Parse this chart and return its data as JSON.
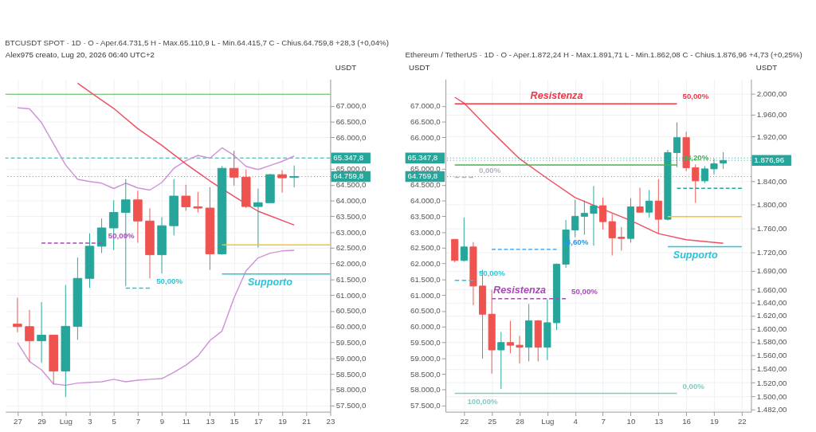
{
  "chart_data": [
    {
      "type": "candlestick",
      "title": "BTCUSDT SPOT · 1D · O - Aper.64.731,5  H - Max.65.110,9  L - Min.64.415,7  C - Chius.64.759,8  +28,3 (+0,04%)",
      "ylabel": "USDT",
      "annotations": [
        "Alex975 creato, Lug 20, 2026 06:40 UTC+2",
        {
          "text": "50,00%",
          "x": "2026-07-04",
          "y": 62650
        },
        {
          "text": "50,00%",
          "x": "2026-07-08",
          "y": 61220
        },
        {
          "text": "Supporto",
          "x": "2026-07-18",
          "y": 61670
        }
      ],
      "series": [
        {
          "type": "line",
          "color": "#ce93d8",
          "x": [
            "2026-06-27",
            "2026-06-28",
            "2026-06-29",
            "2026-06-30",
            "2026-07-01",
            "2026-07-02",
            "2026-07-03",
            "2026-07-04",
            "2026-07-05",
            "2026-07-06",
            "2026-07-07",
            "2026-07-08",
            "2026-07-09",
            "2026-07-10",
            "2026-07-11",
            "2026-07-12",
            "2026-07-13",
            "2026-07-14",
            "2026-07-15",
            "2026-07-16",
            "2026-07-17",
            "2026-07-18",
            "2026-07-19",
            "2026-07-20"
          ],
          "values": [
            66940,
            66910,
            66470,
            65800,
            65130,
            64670,
            64600,
            64550,
            64380,
            64550,
            64400,
            64330,
            64570,
            65020,
            65260,
            65430,
            65340,
            65670,
            65430,
            65080,
            64980,
            65110,
            65240,
            65410
          ]
        },
        {
          "type": "line",
          "color": "#ce93d8",
          "x": [
            "2026-06-27",
            "2026-06-28",
            "2026-06-29",
            "2026-06-30",
            "2026-07-01",
            "2026-07-02",
            "2026-07-03",
            "2026-07-04",
            "2026-07-05",
            "2026-07-06",
            "2026-07-07",
            "2026-07-08",
            "2026-07-09",
            "2026-07-10",
            "2026-07-11",
            "2026-07-12",
            "2026-07-13",
            "2026-07-14",
            "2026-07-15",
            "2026-07-16",
            "2026-07-17",
            "2026-07-18",
            "2026-07-19",
            "2026-07-20"
          ],
          "values": [
            59490,
            58890,
            58630,
            58180,
            58140,
            58210,
            58230,
            58250,
            58330,
            58250,
            58300,
            58330,
            58350,
            58550,
            58780,
            59070,
            59560,
            59860,
            60910,
            61770,
            62180,
            62330,
            62400,
            62420
          ]
        },
        {
          "type": "line",
          "color": "#ef4f63",
          "x": [
            "2026-07-02",
            "2026-07-03",
            "2026-07-05",
            "2026-07-07",
            "2026-07-09",
            "2026-07-11",
            "2026-07-13",
            "2026-07-15",
            "2026-07-17",
            "2026-07-20"
          ],
          "values": [
            67720,
            67450,
            66920,
            66280,
            65750,
            65160,
            64620,
            64130,
            63660,
            63220
          ]
        },
        {
          "type": "line",
          "color": "#ab47bc",
          "line_style": "dashed",
          "x": [
            "2026-06-29",
            "2026-07-04"
          ],
          "values": [
            62650,
            62650
          ]
        },
        {
          "type": "line",
          "color": "#26c6da",
          "line_style": "dashed",
          "x": [
            "2026-07-06",
            "2026-07-08"
          ],
          "values": [
            61220,
            61220
          ]
        },
        {
          "type": "line",
          "color": "#f9c320",
          "x": [
            "2026-07-14",
            "2026-07-23"
          ],
          "values": [
            62590,
            62590
          ]
        },
        {
          "type": "line",
          "color": "#26c6da",
          "x": [
            "2026-07-14",
            "2026-07-23"
          ],
          "values": [
            61670,
            61670
          ]
        },
        {
          "type": "candlestick",
          "x": [
            "2026-06-27",
            "2026-06-28",
            "2026-06-29",
            "2026-06-30",
            "2026-07-01",
            "2026-07-02",
            "2026-07-03",
            "2026-07-04",
            "2026-07-05",
            "2026-07-06",
            "2026-07-07",
            "2026-07-08",
            "2026-07-09",
            "2026-07-10",
            "2026-07-11",
            "2026-07-12",
            "2026-07-13",
            "2026-07-14",
            "2026-07-15",
            "2026-07-16",
            "2026-07-17",
            "2026-07-18",
            "2026-07-19",
            "2026-07-20"
          ],
          "ohlc": [
            [
              60080,
              60920,
              59820,
              60000
            ],
            [
              60000,
              60530,
              58890,
              59550
            ],
            [
              59550,
              60780,
              58850,
              59730
            ],
            [
              59730,
              59730,
              58180,
              58590
            ],
            [
              58590,
              61320,
              57770,
              60010
            ],
            [
              60010,
              62190,
              59580,
              61530
            ],
            [
              61530,
              62960,
              61230,
              62550
            ],
            [
              62550,
              63430,
              62330,
              63130
            ],
            [
              63130,
              64010,
              62430,
              63620
            ],
            [
              63620,
              64680,
              61280,
              64020
            ],
            [
              64020,
              64310,
              62660,
              63350
            ],
            [
              63350,
              63750,
              61530,
              62280
            ],
            [
              62280,
              63470,
              61690,
              63200
            ],
            [
              63200,
              64680,
              62890,
              64140
            ],
            [
              64140,
              64500,
              63670,
              63800
            ],
            [
              63800,
              64270,
              63620,
              63760
            ],
            [
              63760,
              64420,
              61800,
              62310
            ],
            [
              62310,
              65090,
              62280,
              65020
            ],
            [
              65020,
              65580,
              64470,
              64740
            ],
            [
              64740,
              64980,
              63760,
              63810
            ],
            [
              63810,
              64380,
              62510,
              63930
            ],
            [
              63930,
              64850,
              63930,
              64820
            ],
            [
              64820,
              64960,
              64250,
              64720
            ],
            [
              64731.5,
              65110.9,
              64415.7,
              64759.8
            ]
          ],
          "colors": [
            "#ef5350",
            "#ef5350",
            "#26a69a",
            "#ef5350",
            "#26a69a",
            "#26a69a",
            "#26a69a",
            "#26a69a",
            "#26a69a",
            "#26a69a",
            "#ef5350",
            "#ef5350",
            "#26a69a",
            "#26a69a",
            "#ef5350",
            "#ef5350",
            "#ef5350",
            "#26a69a",
            "#ef5350",
            "#ef5350",
            "#26a69a",
            "#26a69a",
            "#ef5350",
            "#26a69a"
          ]
        }
      ],
      "ref_lines": [
        {
          "axis": "y",
          "value": 67370,
          "label": null,
          "color": "#4caf50",
          "line_style": "solid"
        },
        {
          "axis": "y",
          "value": 65347.8,
          "label": "65.347,8",
          "color": "#26a69a",
          "line_style": "dashed"
        },
        {
          "axis": "y",
          "value": 64759.8,
          "label": "64.759,8",
          "color": "#26a69a",
          "line_style": "dotted"
        }
      ],
      "xlim": [
        "2026-06-26",
        "2026-07-23"
      ],
      "xticks": [
        {
          "value": "2026-06-27",
          "label": "27"
        },
        {
          "value": "2026-06-29",
          "label": "29"
        },
        {
          "value": "2026-07-01",
          "label": "Lug"
        },
        {
          "value": "2026-07-03",
          "label": "3"
        },
        {
          "value": "2026-07-05",
          "label": "5"
        },
        {
          "value": "2026-07-07",
          "label": "7"
        },
        {
          "value": "2026-07-09",
          "label": "9"
        },
        {
          "value": "2026-07-11",
          "label": "11"
        },
        {
          "value": "2026-07-13",
          "label": "13"
        },
        {
          "value": "2026-07-15",
          "label": "15"
        },
        {
          "value": "2026-07-17",
          "label": "17"
        },
        {
          "value": "2026-07-19",
          "label": "19"
        },
        {
          "value": "2026-07-21",
          "label": "21"
        },
        {
          "value": "2026-07-23",
          "label": "23"
        }
      ],
      "ylim": [
        57300,
        67850
      ],
      "yticks": [
        {
          "value": 57500,
          "label": "57.500,0"
        },
        {
          "value": 58000,
          "label": "58.000,0"
        },
        {
          "value": 58500,
          "label": "58.500,0"
        },
        {
          "value": 59000,
          "label": "59.000,0"
        },
        {
          "value": 59500,
          "label": "59.500,0"
        },
        {
          "value": 60000,
          "label": "60.000,0"
        },
        {
          "value": 60500,
          "label": "60.500,0"
        },
        {
          "value": 61000,
          "label": "61.000,0"
        },
        {
          "value": 61500,
          "label": "61.500,0"
        },
        {
          "value": 62000,
          "label": "62.000,0"
        },
        {
          "value": 62500,
          "label": "62.500,0"
        },
        {
          "value": 63000,
          "label": "63.000,0"
        },
        {
          "value": 63500,
          "label": "63.500,0"
        },
        {
          "value": 64000,
          "label": "64.000,0"
        },
        {
          "value": 64500,
          "label": "64.500,0"
        },
        {
          "value": 65000,
          "label": "65.000,0"
        },
        {
          "value": 66000,
          "label": "66.000,0"
        },
        {
          "value": 66500,
          "label": "66.500,0"
        },
        {
          "value": 67000,
          "label": "67.000,0"
        }
      ],
      "grid": true
    },
    {
      "type": "candlestick",
      "title": "Ethereum / TetherUS · 1D · O - Aper.1.872,24  H - Max.1.891,71  L - Min.1.862,08  C - Chius.1.876,96  +4,73 (+0,25%)",
      "ylabel": "USDT",
      "y2label": "USDT",
      "log": "y",
      "annotations": [
        {
          "text": "Resistenza",
          "x": "2026-07-02",
          "y": 1980.5
        },
        {
          "text": "50,00%",
          "x": "2026-07-15",
          "y": 1980.5
        },
        {
          "text": "38,20%",
          "x": "2026-07-15",
          "y": 1869
        },
        {
          "text": "0,00%",
          "x": "2026-06-23",
          "y": 1847
        },
        {
          "text": "78,60%",
          "x": "2026-07-02",
          "y": 1725
        },
        {
          "text": "Supporto",
          "x": "2026-07-17",
          "y": 1729.5
        },
        {
          "text": "50,00%",
          "x": "2026-06-23",
          "y": 1675
        },
        {
          "text": "Resistenza",
          "x": "2026-06-28",
          "y": 1646
        },
        {
          "text": "50,00%",
          "x": "2026-07-03",
          "y": 1646
        },
        {
          "text": "100,00%",
          "x": "2026-06-24",
          "y": 1504.6
        },
        {
          "text": "0,00%",
          "x": "2026-07-15",
          "y": 1504.6
        }
      ],
      "series": [
        {
          "type": "line",
          "color": "#ef4f63",
          "x": [
            "2026-06-21",
            "2026-06-22",
            "2026-06-25",
            "2026-06-28",
            "2026-07-01",
            "2026-07-04",
            "2026-07-07",
            "2026-07-10",
            "2026-07-13",
            "2026-07-16",
            "2026-07-20"
          ],
          "values": [
            1993,
            1982,
            1929,
            1880,
            1845,
            1812,
            1792,
            1773,
            1751,
            1741,
            1735
          ]
        },
        {
          "type": "line",
          "color": "#f23645",
          "x": [
            "2026-06-21",
            "2026-07-15"
          ],
          "values": [
            1980.5,
            1980.5
          ]
        },
        {
          "type": "line",
          "color": "#4caf50",
          "x": [
            "2026-06-21",
            "2026-07-15"
          ],
          "values": [
            1869,
            1869
          ]
        },
        {
          "type": "line",
          "color": "#b2b5be",
          "line_style": "dashed",
          "x": [
            "2026-06-21",
            "2026-06-23"
          ],
          "values": [
            1847,
            1847
          ]
        },
        {
          "type": "line",
          "color": "#26c6da",
          "line_style": "dashed",
          "x": [
            "2026-06-21",
            "2026-06-23"
          ],
          "values": [
            1675,
            1675
          ]
        },
        {
          "type": "line",
          "color": "#2196f3",
          "line_style": "dashed",
          "x": [
            "2026-06-25",
            "2026-07-02"
          ],
          "values": [
            1725,
            1725
          ]
        },
        {
          "type": "line",
          "color": "#ab47bc",
          "line_style": "dashed",
          "x": [
            "2026-06-25",
            "2026-07-03"
          ],
          "values": [
            1646,
            1646
          ]
        },
        {
          "type": "line",
          "color": "#80cbc4",
          "x": [
            "2026-06-21",
            "2026-07-15"
          ],
          "values": [
            1504.6,
            1504.6
          ]
        },
        {
          "type": "line",
          "color": "#26a69a",
          "line_style": "dashed",
          "x": [
            "2026-07-15",
            "2026-07-22"
          ],
          "values": [
            1828,
            1828
          ]
        },
        {
          "type": "line",
          "color": "#f9c320",
          "x": [
            "2026-07-14",
            "2026-07-22"
          ],
          "values": [
            1779.6,
            1779.6
          ]
        },
        {
          "type": "line",
          "color": "#26c6da",
          "x": [
            "2026-07-14",
            "2026-07-22"
          ],
          "values": [
            1729.5,
            1729.5
          ]
        },
        {
          "type": "candlestick",
          "x": [
            "2026-06-21",
            "2026-06-22",
            "2026-06-23",
            "2026-06-24",
            "2026-06-25",
            "2026-06-26",
            "2026-06-27",
            "2026-06-28",
            "2026-06-29",
            "2026-06-30",
            "2026-07-01",
            "2026-07-02",
            "2026-07-03",
            "2026-07-04",
            "2026-07-05",
            "2026-07-06",
            "2026-07-07",
            "2026-07-08",
            "2026-07-09",
            "2026-07-10",
            "2026-07-11",
            "2026-07-12",
            "2026-07-13",
            "2026-07-14",
            "2026-07-15",
            "2026-07-16",
            "2026-07-17",
            "2026-07-18",
            "2026-07-19",
            "2026-07-20"
          ],
          "ohlc": [
            [
              1741.5,
              1742,
              1704,
              1707
            ],
            [
              1707,
              1778,
              1705,
              1729
            ],
            [
              1729,
              1737,
              1636,
              1666
            ],
            [
              1666,
              1692,
              1555,
              1622
            ],
            [
              1622,
              1660,
              1533,
              1568
            ],
            [
              1568,
              1595,
              1511,
              1579
            ],
            [
              1579,
              1612,
              1563,
              1575
            ],
            [
              1575,
              1589,
              1548,
              1572
            ],
            [
              1572,
              1638,
              1551,
              1612
            ],
            [
              1612,
              1613,
              1551,
              1572
            ],
            [
              1572,
              1645,
              1553,
              1609
            ],
            [
              1609,
              1702,
              1598,
              1701
            ],
            [
              1701,
              1774,
              1695,
              1757
            ],
            [
              1757,
              1808,
              1745,
              1780
            ],
            [
              1780,
              1807,
              1749,
              1785
            ],
            [
              1785,
              1832,
              1731,
              1798
            ],
            [
              1798,
              1812,
              1758,
              1771
            ],
            [
              1771,
              1784,
              1715,
              1744
            ],
            [
              1745,
              1762,
              1723,
              1743
            ],
            [
              1743,
              1811,
              1736,
              1796
            ],
            [
              1796,
              1829,
              1787,
              1787
            ],
            [
              1787,
              1825,
              1778,
              1806
            ],
            [
              1806,
              1844,
              1751,
              1775
            ],
            [
              1775,
              1896,
              1773,
              1891
            ],
            [
              1891,
              1946,
              1865,
              1918
            ],
            [
              1918,
              1929,
              1858,
              1864
            ],
            [
              1864,
              1870,
              1803,
              1841
            ],
            [
              1841,
              1867,
              1837,
              1862
            ],
            [
              1862,
              1880,
              1852,
              1871
            ],
            [
              1872.24,
              1891.71,
              1862.08,
              1876.96
            ]
          ],
          "colors": [
            "#ef5350",
            "#26a69a",
            "#ef5350",
            "#ef5350",
            "#ef5350",
            "#26a69a",
            "#ef5350",
            "#ef5350",
            "#26a69a",
            "#ef5350",
            "#26a69a",
            "#26a69a",
            "#26a69a",
            "#26a69a",
            "#26a69a",
            "#26a69a",
            "#ef5350",
            "#ef5350",
            "#ef5350",
            "#26a69a",
            "#ef5350",
            "#26a69a",
            "#ef5350",
            "#26a69a",
            "#26a69a",
            "#ef5350",
            "#ef5350",
            "#26a69a",
            "#26a69a",
            "#26a69a"
          ]
        }
      ],
      "ref_lines": [
        {
          "axis": "y",
          "value": 1876.96,
          "label": "1.876,96",
          "color": "#26a69a",
          "line_style": "dotted"
        },
        {
          "axis": "y2",
          "value": 65347.8,
          "label": "65.347,8",
          "color": "#26a69a",
          "line_style": "dotted"
        },
        {
          "axis": "y2",
          "value": 64759.8,
          "label": "64.759,8",
          "color": "#26a69a",
          "line_style": "dotted"
        }
      ],
      "xlim": [
        "2026-06-20",
        "2026-07-23"
      ],
      "xticks": [
        {
          "value": "2026-06-22",
          "label": "22"
        },
        {
          "value": "2026-06-25",
          "label": "25"
        },
        {
          "value": "2026-06-28",
          "label": "28"
        },
        {
          "value": "2026-07-01",
          "label": "Lug"
        },
        {
          "value": "2026-07-04",
          "label": "4"
        },
        {
          "value": "2026-07-07",
          "label": "7"
        },
        {
          "value": "2026-07-10",
          "label": "10"
        },
        {
          "value": "2026-07-13",
          "label": "13"
        },
        {
          "value": "2026-07-16",
          "label": "16"
        },
        {
          "value": "2026-07-19",
          "label": "19"
        },
        {
          "value": "2026-07-22",
          "label": "22"
        }
      ],
      "ylim": [
        1478.6,
        2027.6
      ],
      "yticks": [
        {
          "value": 1482,
          "label": "1.482,00"
        },
        {
          "value": 1500,
          "label": "1.500,00"
        },
        {
          "value": 1520,
          "label": "1.520,00"
        },
        {
          "value": 1540,
          "label": "1.540,00"
        },
        {
          "value": 1560,
          "label": "1.560,00"
        },
        {
          "value": 1580,
          "label": "1.580,00"
        },
        {
          "value": 1600,
          "label": "1.600,00"
        },
        {
          "value": 1620,
          "label": "1.620,00"
        },
        {
          "value": 1640,
          "label": "1.640,00"
        },
        {
          "value": 1660,
          "label": "1.660,00"
        },
        {
          "value": 1690,
          "label": "1.690,00"
        },
        {
          "value": 1720,
          "label": "1.720,00"
        },
        {
          "value": 1760,
          "label": "1.760,00"
        },
        {
          "value": 1800,
          "label": "1.800,00"
        },
        {
          "value": 1840,
          "label": "1.840,00"
        },
        {
          "value": 1920,
          "label": "1.920,00"
        },
        {
          "value": 1960,
          "label": "1.960,00"
        },
        {
          "value": 2000,
          "label": "2.000,00"
        }
      ],
      "y2lim": [
        57300,
        67850
      ],
      "y2ticks": [
        {
          "value": 57500,
          "label": "57.500,0"
        },
        {
          "value": 58000,
          "label": "58.000,0"
        },
        {
          "value": 58500,
          "label": "58.500,0"
        },
        {
          "value": 59000,
          "label": "59.000,0"
        },
        {
          "value": 59500,
          "label": "59.500,0"
        },
        {
          "value": 60000,
          "label": "60.000,0"
        },
        {
          "value": 60500,
          "label": "60.500,0"
        },
        {
          "value": 61000,
          "label": "61.000,0"
        },
        {
          "value": 61500,
          "label": "61.500,0"
        },
        {
          "value": 62000,
          "label": "62.000,0"
        },
        {
          "value": 62500,
          "label": "62.500,0"
        },
        {
          "value": 63000,
          "label": "63.000,0"
        },
        {
          "value": 63500,
          "label": "63.500,0"
        },
        {
          "value": 64000,
          "label": "64.000,0"
        },
        {
          "value": 64500,
          "label": "64.500,0"
        },
        {
          "value": 65000,
          "label": "65.000,0"
        },
        {
          "value": 66000,
          "label": "66.000,0"
        },
        {
          "value": 66500,
          "label": "66.500,0"
        },
        {
          "value": 67000,
          "label": "67.000,0"
        }
      ],
      "grid": true
    }
  ]
}
